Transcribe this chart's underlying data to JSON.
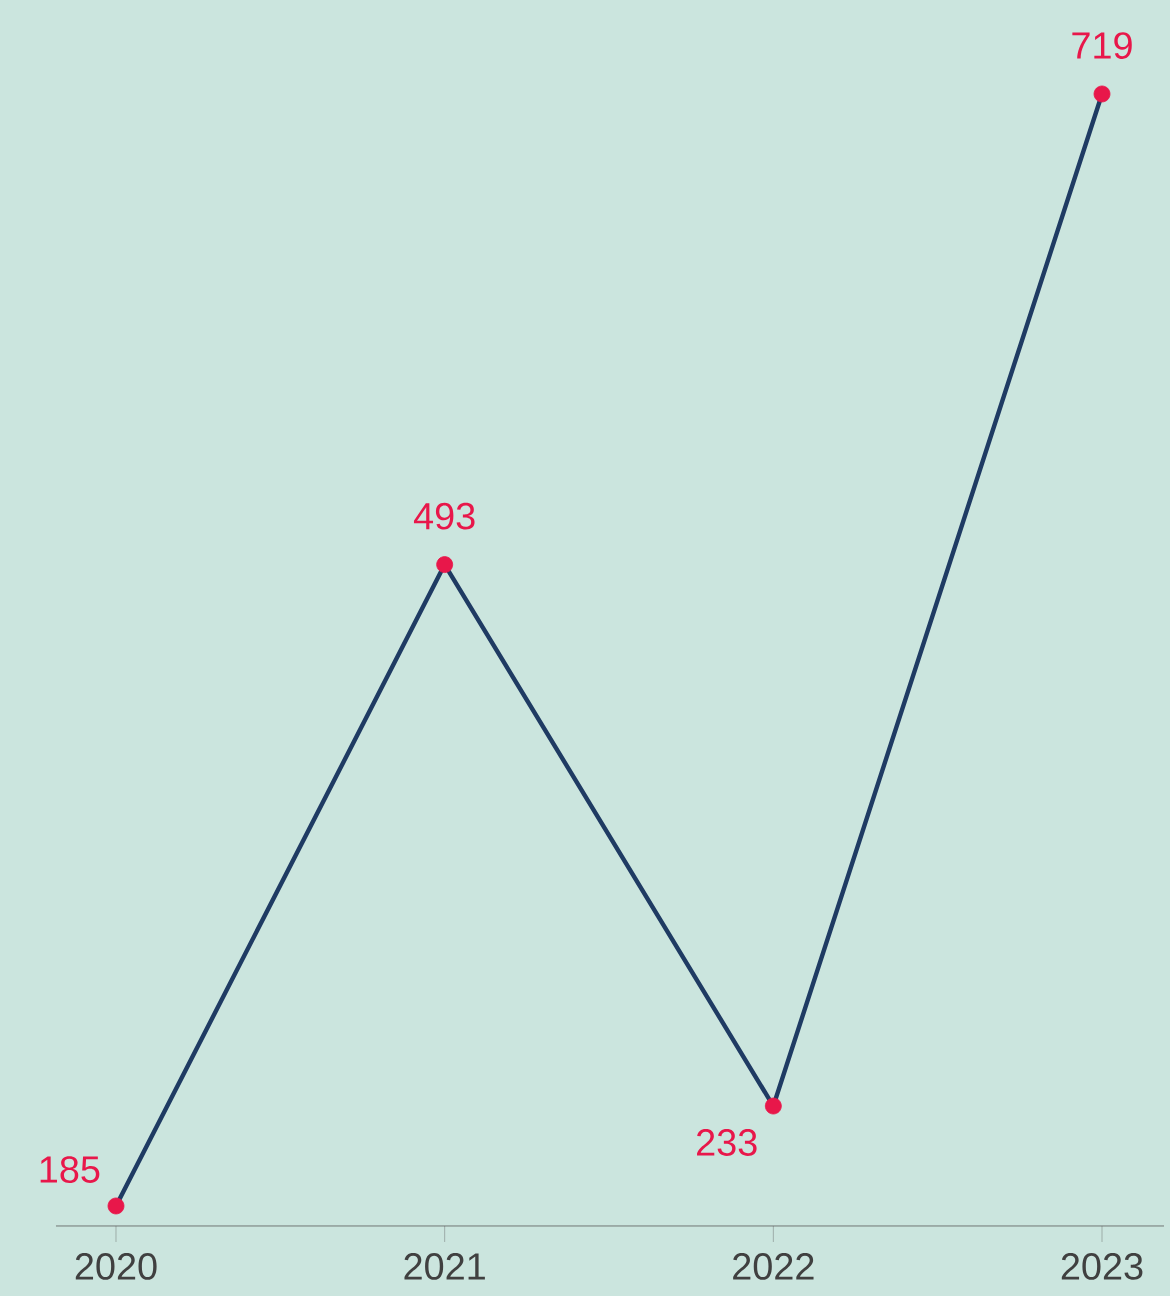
{
  "chart_data": {
    "type": "line",
    "categories": [
      "2020",
      "2021",
      "2022",
      "2023"
    ],
    "series": [
      {
        "color": "#1f3b63",
        "colors": [
          "#e8174a",
          "#e8174a",
          "#e8174a",
          "#e8174a"
        ],
        "values": [
          185,
          493,
          233,
          719
        ]
      }
    ],
    "data_labels": true,
    "marker": "circle",
    "line_style": "solid",
    "grid": false
  }
}
